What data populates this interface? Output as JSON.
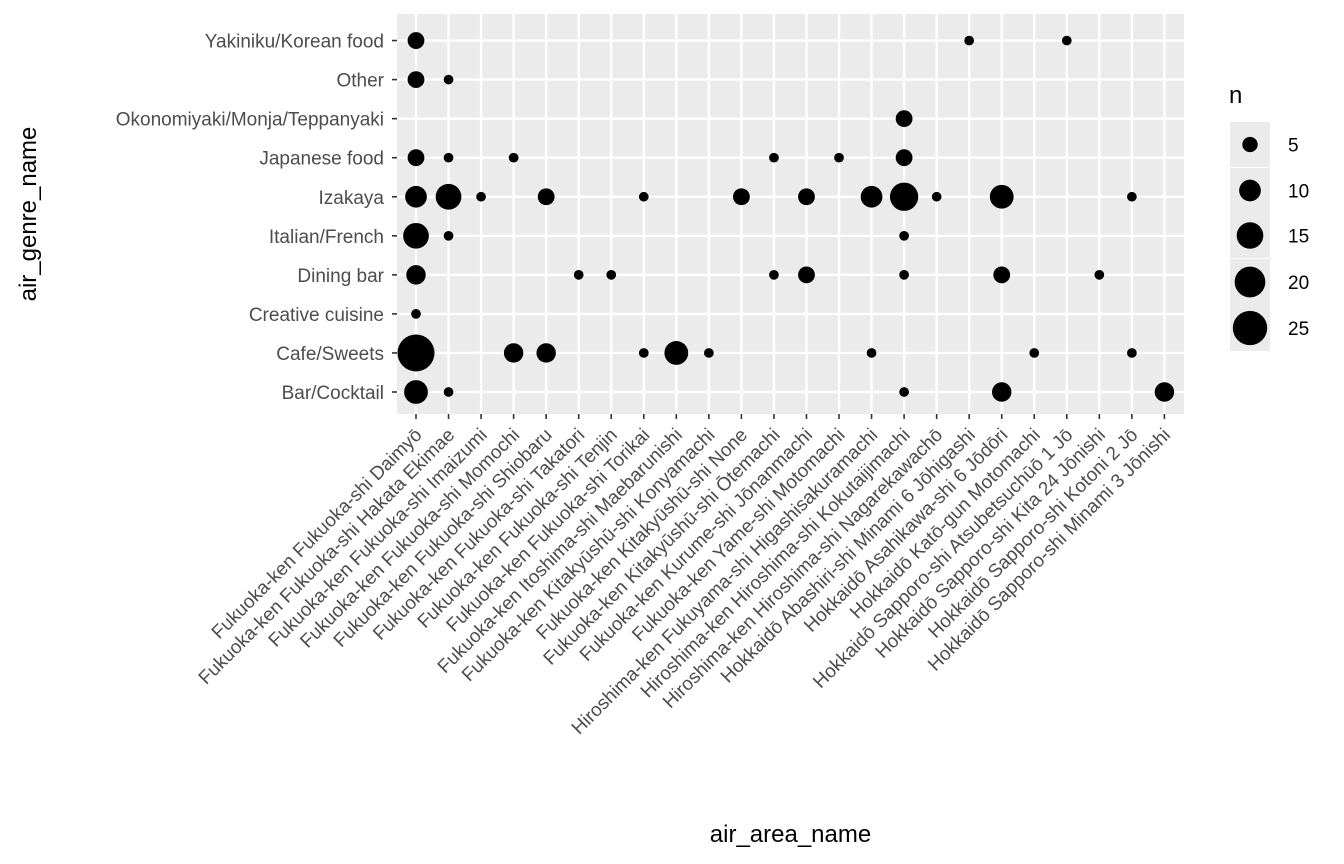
{
  "chart_data": {
    "type": "scatter",
    "title": "",
    "xlabel": "air_area_name",
    "ylabel": "air_genre_name",
    "x_categories": [
      "Fukuoka-ken Fukuoka-shi Daimyō",
      "Fukuoka-ken Fukuoka-shi Hakata Ekimae",
      "Fukuoka-ken Fukuoka-shi Imaizumi",
      "Fukuoka-ken Fukuoka-shi Momochi",
      "Fukuoka-ken Fukuoka-shi Shiobaru",
      "Fukuoka-ken Fukuoka-shi Takatori",
      "Fukuoka-ken Fukuoka-shi Tenjin",
      "Fukuoka-ken Fukuoka-shi Torikai",
      "Fukuoka-ken Itoshima-shi Maebarunishi",
      "Fukuoka-ken Kitakyūshū-shi Konyamachi",
      "Fukuoka-ken Kitakyūshū-shi None",
      "Fukuoka-ken Kitakyūshū-shi Ōtemachi",
      "Fukuoka-ken Kurume-shi Jōnanmachi",
      "Fukuoka-ken Yame-shi Motomachi",
      "Hiroshima-ken Fukuyama-shi Higashisakuramachi",
      "Hiroshima-ken Hiroshima-shi Kokutaijimachi",
      "Hiroshima-ken Hiroshima-shi Nagarekawachō",
      "Hokkaidō Abashiri-shi Minami 6 Jōhigashi",
      "Hokkaidō Asahikawa-shi 6 Jōdōri",
      "Hokkaidō Katō-gun Motomachi",
      "Hokkaidō Sapporo-shi Atsubetsuchūō 1 Jō",
      "Hokkaidō Sapporo-shi Kita 24 Jōnishi",
      "Hokkaidō Sapporo-shi Kotoni 2 Jō",
      "Hokkaidō Sapporo-shi Minami 3 Jōnishi"
    ],
    "y_categories": [
      "Bar/Cocktail",
      "Cafe/Sweets",
      "Creative cuisine",
      "Dining bar",
      "Italian/French",
      "Izakaya",
      "Japanese food",
      "Okonomiyaki/Monja/Teppanyaki",
      "Other",
      "Yakiniku/Korean food"
    ],
    "points": [
      {
        "x": "Fukuoka-ken Fukuoka-shi Daimyō",
        "y": "Yakiniku/Korean food",
        "n": 6
      },
      {
        "x": "Fukuoka-ken Fukuoka-shi Daimyō",
        "y": "Other",
        "n": 6
      },
      {
        "x": "Fukuoka-ken Fukuoka-shi Daimyō",
        "y": "Japanese food",
        "n": 6
      },
      {
        "x": "Fukuoka-ken Fukuoka-shi Daimyō",
        "y": "Izakaya",
        "n": 10
      },
      {
        "x": "Fukuoka-ken Fukuoka-shi Daimyō",
        "y": "Italian/French",
        "n": 14
      },
      {
        "x": "Fukuoka-ken Fukuoka-shi Daimyō",
        "y": "Dining bar",
        "n": 8
      },
      {
        "x": "Fukuoka-ken Fukuoka-shi Daimyō",
        "y": "Creative cuisine",
        "n": 2
      },
      {
        "x": "Fukuoka-ken Fukuoka-shi Daimyō",
        "y": "Cafe/Sweets",
        "n": 29
      },
      {
        "x": "Fukuoka-ken Fukuoka-shi Daimyō",
        "y": "Bar/Cocktail",
        "n": 12
      },
      {
        "x": "Fukuoka-ken Fukuoka-shi Hakata Ekimae",
        "y": "Other",
        "n": 2
      },
      {
        "x": "Fukuoka-ken Fukuoka-shi Hakata Ekimae",
        "y": "Japanese food",
        "n": 2
      },
      {
        "x": "Fukuoka-ken Fukuoka-shi Hakata Ekimae",
        "y": "Izakaya",
        "n": 14
      },
      {
        "x": "Fukuoka-ken Fukuoka-shi Hakata Ekimae",
        "y": "Italian/French",
        "n": 2
      },
      {
        "x": "Fukuoka-ken Fukuoka-shi Hakata Ekimae",
        "y": "Bar/Cocktail",
        "n": 2
      },
      {
        "x": "Fukuoka-ken Fukuoka-shi Imaizumi",
        "y": "Izakaya",
        "n": 2
      },
      {
        "x": "Fukuoka-ken Fukuoka-shi Momochi",
        "y": "Japanese food",
        "n": 2
      },
      {
        "x": "Fukuoka-ken Fukuoka-shi Momochi",
        "y": "Cafe/Sweets",
        "n": 8
      },
      {
        "x": "Fukuoka-ken Fukuoka-shi Shiobaru",
        "y": "Izakaya",
        "n": 6
      },
      {
        "x": "Fukuoka-ken Fukuoka-shi Shiobaru",
        "y": "Cafe/Sweets",
        "n": 8
      },
      {
        "x": "Fukuoka-ken Fukuoka-shi Takatori",
        "y": "Dining bar",
        "n": 2
      },
      {
        "x": "Fukuoka-ken Fukuoka-shi Tenjin",
        "y": "Dining bar",
        "n": 2
      },
      {
        "x": "Fukuoka-ken Fukuoka-shi Torikai",
        "y": "Izakaya",
        "n": 2
      },
      {
        "x": "Fukuoka-ken Fukuoka-shi Torikai",
        "y": "Cafe/Sweets",
        "n": 2
      },
      {
        "x": "Fukuoka-ken Itoshima-shi Maebarunishi",
        "y": "Cafe/Sweets",
        "n": 12
      },
      {
        "x": "Fukuoka-ken Kitakyūshū-shi Konyamachi",
        "y": "Cafe/Sweets",
        "n": 2
      },
      {
        "x": "Fukuoka-ken Kitakyūshū-shi None",
        "y": "Izakaya",
        "n": 6
      },
      {
        "x": "Fukuoka-ken Kitakyūshū-shi Ōtemachi",
        "y": "Japanese food",
        "n": 2
      },
      {
        "x": "Fukuoka-ken Kitakyūshū-shi Ōtemachi",
        "y": "Dining bar",
        "n": 2
      },
      {
        "x": "Fukuoka-ken Kurume-shi Jōnanmachi",
        "y": "Izakaya",
        "n": 6
      },
      {
        "x": "Fukuoka-ken Kurume-shi Jōnanmachi",
        "y": "Dining bar",
        "n": 6
      },
      {
        "x": "Fukuoka-ken Yame-shi Motomachi",
        "y": "Japanese food",
        "n": 2
      },
      {
        "x": "Hiroshima-ken Fukuyama-shi Higashisakuramachi",
        "y": "Izakaya",
        "n": 10
      },
      {
        "x": "Hiroshima-ken Fukuyama-shi Higashisakuramachi",
        "y": "Cafe/Sweets",
        "n": 2
      },
      {
        "x": "Hiroshima-ken Hiroshima-shi Kokutaijimachi",
        "y": "Okonomiyaki/Monja/Teppanyaki",
        "n": 6
      },
      {
        "x": "Hiroshima-ken Hiroshima-shi Kokutaijimachi",
        "y": "Japanese food",
        "n": 6
      },
      {
        "x": "Hiroshima-ken Hiroshima-shi Kokutaijimachi",
        "y": "Izakaya",
        "n": 17
      },
      {
        "x": "Hiroshima-ken Hiroshima-shi Kokutaijimachi",
        "y": "Italian/French",
        "n": 2
      },
      {
        "x": "Hiroshima-ken Hiroshima-shi Kokutaijimachi",
        "y": "Dining bar",
        "n": 2
      },
      {
        "x": "Hiroshima-ken Hiroshima-shi Kokutaijimachi",
        "y": "Bar/Cocktail",
        "n": 2
      },
      {
        "x": "Hiroshima-ken Hiroshima-shi Nagarekawachō",
        "y": "Izakaya",
        "n": 2
      },
      {
        "x": "Hokkaidō Abashiri-shi Minami 6 Jōhigashi",
        "y": "Yakiniku/Korean food",
        "n": 2
      },
      {
        "x": "Hokkaidō Asahikawa-shi 6 Jōdōri",
        "y": "Izakaya",
        "n": 12
      },
      {
        "x": "Hokkaidō Asahikawa-shi 6 Jōdōri",
        "y": "Dining bar",
        "n": 6
      },
      {
        "x": "Hokkaidō Asahikawa-shi 6 Jōdōri",
        "y": "Bar/Cocktail",
        "n": 8
      },
      {
        "x": "Hokkaidō Katō-gun Motomachi",
        "y": "Cafe/Sweets",
        "n": 2
      },
      {
        "x": "Hokkaidō Sapporo-shi Atsubetsuchūō 1 Jō",
        "y": "Yakiniku/Korean food",
        "n": 2
      },
      {
        "x": "Hokkaidō Sapporo-shi Kita 24 Jōnishi",
        "y": "Dining bar",
        "n": 2
      },
      {
        "x": "Hokkaidō Sapporo-shi Kotoni 2 Jō",
        "y": "Izakaya",
        "n": 2
      },
      {
        "x": "Hokkaidō Sapporo-shi Kotoni 2 Jō",
        "y": "Cafe/Sweets",
        "n": 2
      },
      {
        "x": "Hokkaidō Sapporo-shi Minami 3 Jōnishi",
        "y": "Bar/Cocktail",
        "n": 8
      }
    ],
    "size_legend": {
      "title": "n",
      "breaks": [
        5,
        10,
        15,
        20,
        25
      ],
      "labels": [
        "5",
        "10",
        "15",
        "20",
        "25"
      ],
      "placement": "right"
    },
    "grid": true,
    "panel_background": "#ebebeb",
    "grid_color": "#ffffff",
    "point_color": "#000000"
  }
}
